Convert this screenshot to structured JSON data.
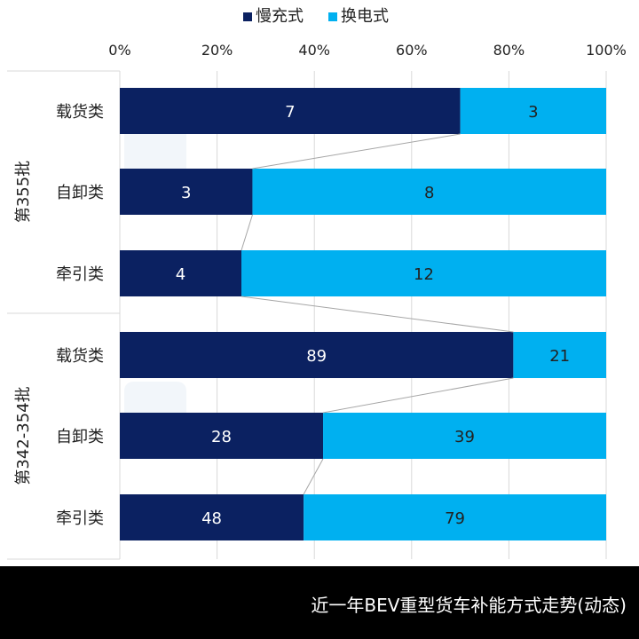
{
  "footer": {
    "caption": "近一年BEV重型货车补能方式走势(动态)"
  },
  "colors": {
    "slow": "#0b2161",
    "swap": "#00b0f0",
    "grid": "#d9d9d9",
    "connector": "#a6a6a6"
  },
  "chart_data": {
    "type": "bar",
    "orientation": "horizontal",
    "stacked": "percent",
    "xlim": [
      0,
      100
    ],
    "xticks": [
      "0%",
      "20%",
      "40%",
      "60%",
      "80%",
      "100%"
    ],
    "legend": {
      "position": "top",
      "items": [
        "慢充式",
        "换电式"
      ]
    },
    "grid": true,
    "groups": [
      {
        "name": "第355批",
        "categories": [
          "载货类",
          "自卸类",
          "牵引类"
        ],
        "series": [
          {
            "name": "慢充式",
            "values": [
              7,
              3,
              4
            ]
          },
          {
            "name": "换电式",
            "values": [
              3,
              8,
              12
            ]
          }
        ]
      },
      {
        "name": "第342-354批",
        "categories": [
          "载货类",
          "自卸类",
          "牵引类"
        ],
        "series": [
          {
            "name": "慢充式",
            "values": [
              89,
              28,
              48
            ]
          },
          {
            "name": "换电式",
            "values": [
              21,
              39,
              79
            ]
          }
        ]
      }
    ]
  }
}
